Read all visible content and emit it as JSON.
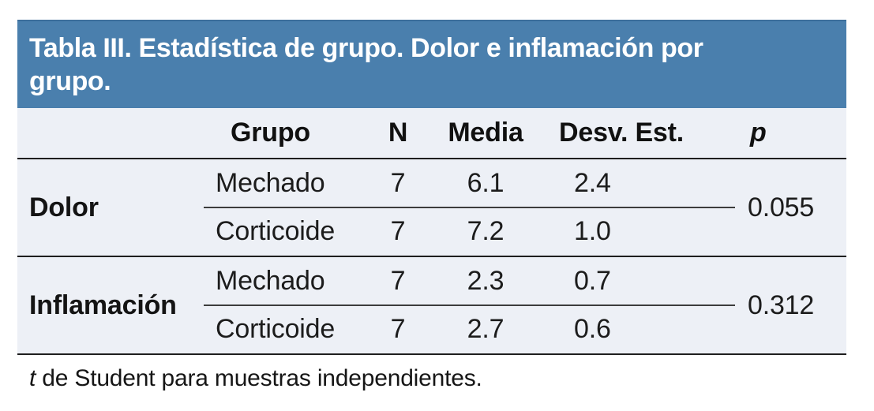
{
  "title": "Tabla III. Estadística de grupo. Dolor e inflamación por grupo.",
  "columns": {
    "label": "",
    "group": "Grupo",
    "n": "N",
    "mean": "Media",
    "sd": "Desv. Est.",
    "p": "p"
  },
  "sections": [
    {
      "label": "Dolor",
      "p": "0.055",
      "rows": [
        {
          "group": "Mechado",
          "n": "7",
          "mean": "6.1",
          "sd": "2.4"
        },
        {
          "group": "Corticoide",
          "n": "7",
          "mean": "7.2",
          "sd": "1.0"
        }
      ]
    },
    {
      "label": "Inflamación",
      "p": "0.312",
      "rows": [
        {
          "group": "Mechado",
          "n": "7",
          "mean": "2.3",
          "sd": "0.7"
        },
        {
          "group": "Corticoide",
          "n": "7",
          "mean": "2.7",
          "sd": "0.6"
        }
      ]
    }
  ],
  "footnote": {
    "t": "t",
    "rest": " de Student para muestras independientes."
  },
  "colors": {
    "band_blue": "#4a7fad",
    "table_background": "#edf0f6",
    "rule_black": "#1e1e1e",
    "title_text": "#ffffff"
  }
}
